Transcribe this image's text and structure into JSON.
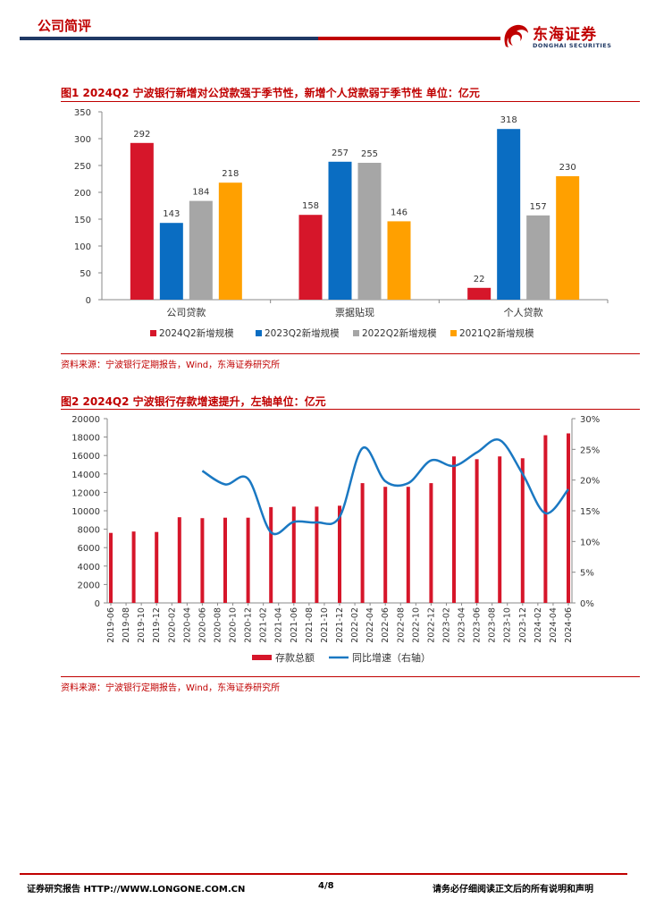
{
  "header": {
    "section_title": "公司简评",
    "logo_name": "东海证券",
    "logo_sub": "DONGHAI SECURITIES"
  },
  "figure1": {
    "title": "图1  2024Q2 宁波银行新增对公贷款强于季节性，新增个人贷款弱于季节性  单位：亿元",
    "source": "资料来源：宁波银行定期报告，Wind，东海证券研究所"
  },
  "figure2": {
    "title": "图2  2024Q2 宁波银行存款增速提升，左轴单位：亿元",
    "source": "资料来源：宁波银行定期报告，Wind，东海证券研究所"
  },
  "footer": {
    "left": "证券研究报告  HTTP://WWW.LONGONE.COM.CN",
    "page": "4/8",
    "right": "请务必仔细阅读正文后的所有说明和声明"
  },
  "colors": {
    "red": "#d6162a",
    "blue": "#0a6dc2",
    "gray": "#a6a6a6",
    "orange": "#ffa000",
    "line_blue": "#1a78c2",
    "brand_red": "#c00000",
    "brand_navy": "#1f3864"
  },
  "chart_data": [
    {
      "type": "bar",
      "categories": [
        "公司贷款",
        "票据贴现",
        "个人贷款"
      ],
      "series": [
        {
          "name": "2024Q2新增规模",
          "values": [
            292,
            158,
            22
          ]
        },
        {
          "name": "2023Q2新增规模",
          "values": [
            143,
            257,
            318
          ]
        },
        {
          "name": "2022Q2新增规模",
          "values": [
            184,
            255,
            157
          ]
        },
        {
          "name": "2021Q2新增规模",
          "values": [
            218,
            146,
            230
          ]
        }
      ],
      "ylim": [
        0,
        350
      ],
      "yticks": [
        0,
        50,
        100,
        150,
        200,
        250,
        300,
        350
      ],
      "legend_position": "bottom",
      "grid": false
    },
    {
      "type": "bar+line",
      "x": [
        "2019-06",
        "2019-08",
        "2019-10",
        "2019-12",
        "2020-02",
        "2020-04",
        "2020-06",
        "2020-08",
        "2020-10",
        "2020-12",
        "2021-02",
        "2021-04",
        "2021-06",
        "2021-08",
        "2021-10",
        "2021-12",
        "2022-02",
        "2022-04",
        "2022-06",
        "2022-08",
        "2022-10",
        "2022-12",
        "2023-02",
        "2023-04",
        "2023-06",
        "2023-08",
        "2023-10",
        "2023-12",
        "2024-02",
        "2024-04",
        "2024-06"
      ],
      "bar_series": {
        "name": "存款总额",
        "axis": "left",
        "points": [
          {
            "x": "2019-06",
            "y": 7600
          },
          {
            "x": "2019-09",
            "y": 7750
          },
          {
            "x": "2019-12",
            "y": 7700
          },
          {
            "x": "2020-03",
            "y": 9300
          },
          {
            "x": "2020-06",
            "y": 9200
          },
          {
            "x": "2020-09",
            "y": 9250
          },
          {
            "x": "2020-12",
            "y": 9250
          },
          {
            "x": "2021-03",
            "y": 10400
          },
          {
            "x": "2021-06",
            "y": 10450
          },
          {
            "x": "2021-09",
            "y": 10450
          },
          {
            "x": "2021-12",
            "y": 10550
          },
          {
            "x": "2022-03",
            "y": 13000
          },
          {
            "x": "2022-06",
            "y": 12600
          },
          {
            "x": "2022-09",
            "y": 12600
          },
          {
            "x": "2022-12",
            "y": 13000
          },
          {
            "x": "2023-03",
            "y": 15900
          },
          {
            "x": "2023-06",
            "y": 15600
          },
          {
            "x": "2023-09",
            "y": 15900
          },
          {
            "x": "2023-12",
            "y": 15700
          },
          {
            "x": "2024-03",
            "y": 18200
          },
          {
            "x": "2024-06",
            "y": 18400
          }
        ]
      },
      "line_series": {
        "name": "同比增速（右轴）",
        "axis": "right",
        "points": [
          {
            "x": "2020-06",
            "y": 21.5
          },
          {
            "x": "2020-09",
            "y": 19.3
          },
          {
            "x": "2020-12",
            "y": 20.2
          },
          {
            "x": "2021-03",
            "y": 11.5
          },
          {
            "x": "2021-06",
            "y": 13.2
          },
          {
            "x": "2021-09",
            "y": 13.1
          },
          {
            "x": "2021-12",
            "y": 14.0
          },
          {
            "x": "2022-03",
            "y": 25.2
          },
          {
            "x": "2022-06",
            "y": 19.8
          },
          {
            "x": "2022-09",
            "y": 19.5
          },
          {
            "x": "2022-12",
            "y": 23.2
          },
          {
            "x": "2023-03",
            "y": 22.3
          },
          {
            "x": "2023-06",
            "y": 24.5
          },
          {
            "x": "2023-09",
            "y": 26.5
          },
          {
            "x": "2023-12",
            "y": 21.0
          },
          {
            "x": "2024-03",
            "y": 14.6
          },
          {
            "x": "2024-06",
            "y": 18.5
          }
        ]
      },
      "ylim_left": [
        0,
        20000
      ],
      "yticks_left": [
        0,
        2000,
        4000,
        6000,
        8000,
        10000,
        12000,
        14000,
        16000,
        18000,
        20000
      ],
      "ylim_right": [
        0,
        30
      ],
      "yticks_right": [
        "0%",
        "5%",
        "10%",
        "15%",
        "20%",
        "25%",
        "30%"
      ],
      "legend_position": "bottom",
      "grid": false
    }
  ]
}
